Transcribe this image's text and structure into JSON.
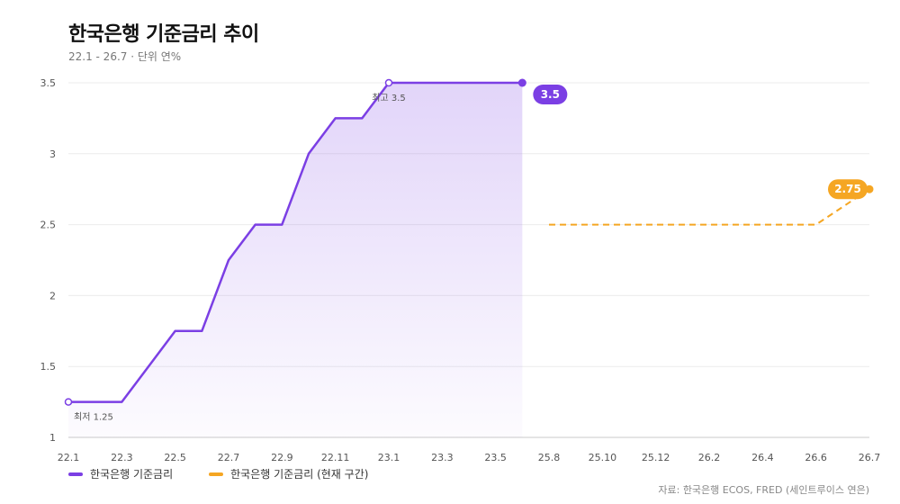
{
  "chart_data": {
    "type": "line",
    "title": "한국은행 기준금리 추이",
    "subtitle": "22.1 - 26.7 · 단위 연%",
    "source": "자료: 한국은행 ECOS, FRED (세인트루이스 연은)",
    "ylim": [
      1,
      3.5
    ],
    "yticks": [
      "1",
      "1.5",
      "2",
      "2.5",
      "3",
      "3.5"
    ],
    "x_labels": [
      "22.1",
      "22.3",
      "22.5",
      "22.7",
      "22.9",
      "22.11",
      "23.1",
      "23.3",
      "23.5",
      "25.8",
      "25.10",
      "25.12",
      "26.2",
      "26.4",
      "26.6",
      "26.7"
    ],
    "grid": true,
    "legend_position": "bottom-left",
    "series": [
      {
        "name": "한국은행 기준금리",
        "color": "#7B3FE4",
        "x": [
          "22.1",
          "22.2",
          "22.3",
          "22.4",
          "22.5",
          "22.6",
          "22.7",
          "22.8",
          "22.9",
          "22.10",
          "22.11",
          "22.12",
          "23.1",
          "23.2",
          "23.3",
          "23.4",
          "23.5",
          "23.6"
        ],
        "values": [
          1.25,
          1.25,
          1.25,
          1.5,
          1.75,
          1.75,
          2.25,
          2.5,
          2.5,
          3.0,
          3.25,
          3.25,
          3.5,
          3.5,
          3.5,
          3.5,
          3.5,
          3.5
        ],
        "end_label": "3.5"
      },
      {
        "name": "한국은행 기준금리 (현재 구간)",
        "color": "#F5A623",
        "x": [
          "25.8",
          "25.9",
          "25.10",
          "25.11",
          "25.12",
          "26.1",
          "26.2",
          "26.3",
          "26.4",
          "26.5",
          "26.6",
          "26.7"
        ],
        "values": [
          2.5,
          2.5,
          2.5,
          2.5,
          2.5,
          2.5,
          2.5,
          2.5,
          2.5,
          2.5,
          2.5,
          2.75
        ],
        "end_label": "2.75"
      }
    ],
    "annotations": [
      {
        "text": "최저 1.25",
        "x": "22.1",
        "value": 1.25
      },
      {
        "text": "최고 3.5",
        "x": "23.1",
        "value": 3.5
      }
    ]
  }
}
